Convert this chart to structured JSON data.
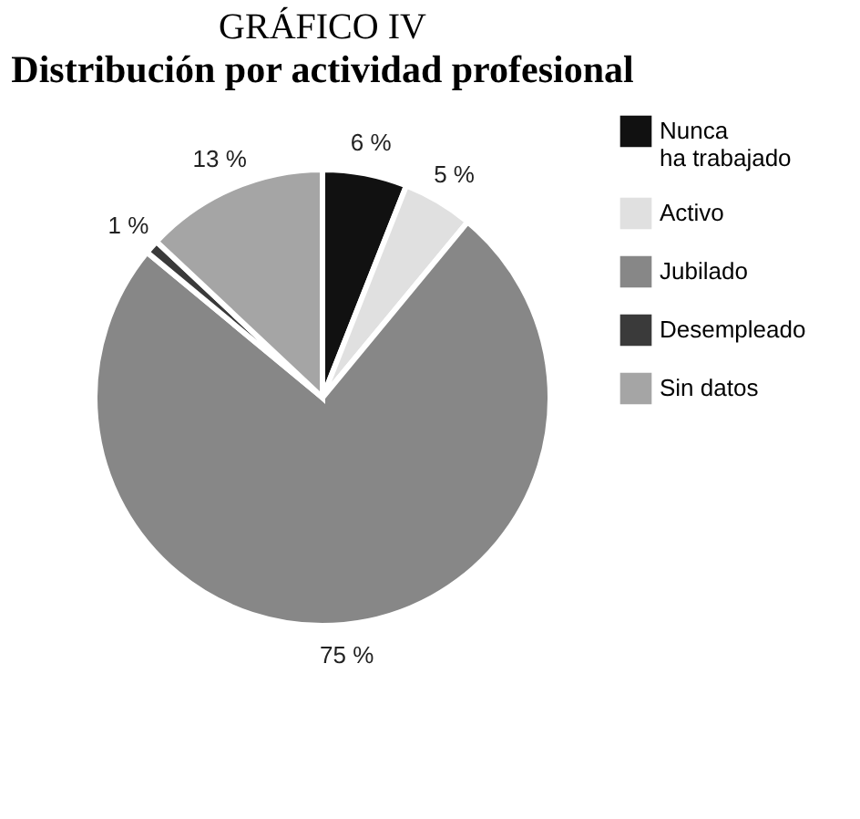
{
  "chart_data": {
    "type": "pie",
    "title": "GRÁFICO IV",
    "subtitle": "Distribución por actividad profesional",
    "categories": [
      "Nunca ha trabajado",
      "Activo",
      "Jubilado",
      "Desempleado",
      "Sin datos"
    ],
    "values": [
      6,
      5,
      75,
      1,
      13
    ],
    "colors": [
      "#111111",
      "#e0e0e0",
      "#878787",
      "#3a3a3a",
      "#a5a5a5"
    ],
    "value_labels": [
      "6 %",
      "5 %",
      "75 %",
      "1 %",
      "13 %"
    ],
    "legend": "right"
  }
}
